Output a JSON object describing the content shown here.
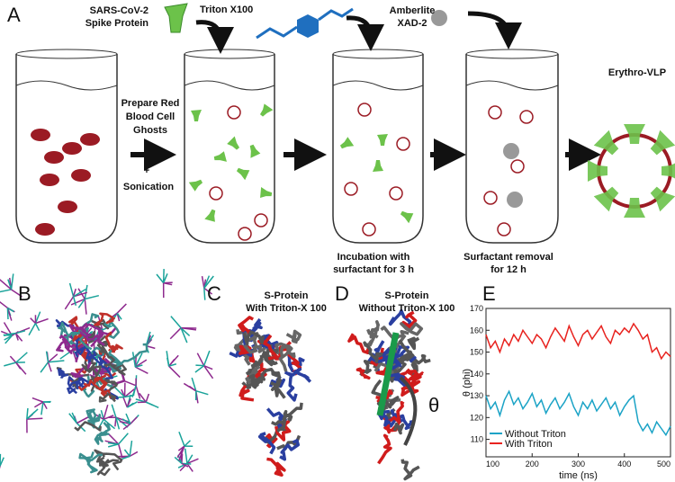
{
  "panels": {
    "a": {
      "label": "A",
      "spike_protein": [
        "SARS-CoV-2",
        "Spike Protein"
      ],
      "triton": "Triton X100",
      "amberlite": [
        "Amberlite",
        "XAD-2"
      ],
      "prepare": [
        "Prepare Red",
        "Blood Cell",
        "Ghosts"
      ],
      "plus": "+",
      "sonication": "Sonication",
      "incubation": [
        "Incubation with",
        "surfactant for 3 h"
      ],
      "removal": [
        "Surfactant removal",
        "for 12 h"
      ],
      "product": "Erythro-VLP"
    },
    "b": {
      "label": "B"
    },
    "c": {
      "label": "C",
      "title": [
        "S-Protein",
        "With Triton-X 100"
      ]
    },
    "d": {
      "label": "D",
      "title": [
        "S-Protein",
        "Without Triton-X 100"
      ],
      "angle": "θ"
    },
    "e": {
      "label": "E"
    }
  },
  "chart_data": {
    "type": "line",
    "y_label": "θ (phi)",
    "x_label": "time (ns)",
    "x": [
      100,
      110,
      120,
      130,
      140,
      150,
      160,
      170,
      180,
      190,
      200,
      210,
      220,
      230,
      240,
      250,
      260,
      270,
      280,
      290,
      300,
      310,
      320,
      330,
      340,
      350,
      360,
      370,
      380,
      390,
      400,
      410,
      420,
      430,
      440,
      450,
      460,
      470,
      480,
      490,
      500
    ],
    "series": [
      {
        "name": "Without Triton",
        "color": "#1ba3c6",
        "values": [
          130,
          124,
          127,
          121,
          128,
          132,
          126,
          129,
          124,
          127,
          131,
          125,
          128,
          122,
          126,
          129,
          124,
          127,
          131,
          125,
          121,
          127,
          124,
          128,
          123,
          126,
          129,
          124,
          127,
          121,
          125,
          128,
          130,
          118,
          114,
          117,
          113,
          118,
          115,
          112,
          116
        ]
      },
      {
        "name": "With Triton",
        "color": "#e8231f",
        "values": [
          158,
          152,
          155,
          150,
          156,
          153,
          158,
          155,
          160,
          157,
          154,
          158,
          156,
          152,
          157,
          161,
          158,
          155,
          162,
          157,
          153,
          158,
          160,
          156,
          159,
          162,
          157,
          154,
          160,
          158,
          161,
          159,
          163,
          160,
          156,
          158,
          150,
          152,
          147,
          150,
          148
        ]
      }
    ],
    "xlim": [
      100,
      500
    ],
    "ylim": [
      102,
      170
    ],
    "xticks": [
      100,
      200,
      300,
      400,
      500
    ],
    "yticks": [
      110,
      120,
      130,
      140,
      150,
      160,
      170
    ],
    "legend": "lower left"
  }
}
